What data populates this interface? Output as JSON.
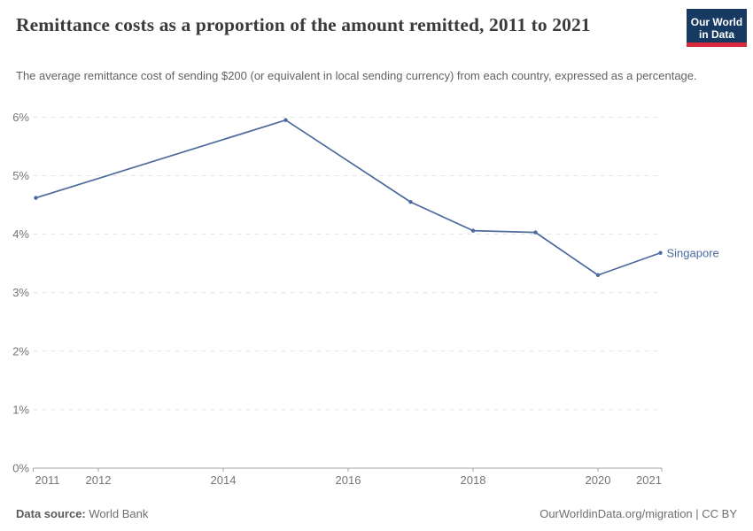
{
  "header": {
    "title": "Remittance costs as a proportion of the amount remitted, 2011 to 2021",
    "subtitle": "The average remittance cost of sending $200 (or equivalent in local sending currency) from each country, expressed as a percentage.",
    "logo": {
      "line1": "Our World",
      "line2": "in Data",
      "bg_color": "#173a63",
      "accent_color": "#d7283c"
    }
  },
  "chart_data": {
    "type": "line",
    "title": "Remittance costs as a proportion of the amount remitted, 2011 to 2021",
    "xlabel": "",
    "ylabel": "",
    "x": {
      "range": [
        2011,
        2021
      ],
      "tick_years": [
        2011,
        2012,
        2014,
        2016,
        2018,
        2020,
        2021
      ],
      "tick_labels": [
        "2011",
        "2012",
        "2014",
        "2016",
        "2018",
        "2020",
        "2021"
      ]
    },
    "y": {
      "range": [
        0,
        6
      ],
      "tick_values": [
        0,
        1,
        2,
        3,
        4,
        5,
        6
      ],
      "tick_labels": [
        "0%",
        "1%",
        "2%",
        "3%",
        "4%",
        "5%",
        "6%"
      ],
      "gridlines": "dashed"
    },
    "series": [
      {
        "name": "Singapore",
        "color": "#4c6a9c",
        "x": [
          2011,
          2015,
          2017,
          2018,
          2019,
          2020,
          2021
        ],
        "values": [
          4.62,
          5.95,
          4.55,
          4.06,
          4.03,
          3.3,
          3.68
        ]
      }
    ],
    "legend_position": "end-of-line-label"
  },
  "footer": {
    "source_label": "Data source:",
    "source_value": "World Bank",
    "credit": "OurWorldinData.org/migration | CC BY"
  }
}
